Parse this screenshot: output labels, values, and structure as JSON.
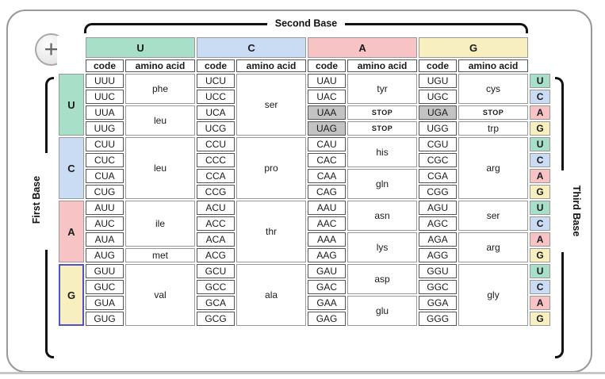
{
  "zoom_button": {
    "label": "+"
  },
  "axes": {
    "top": "Second Base",
    "left": "First Base",
    "right": "Third Base"
  },
  "column_headers": {
    "code": "code",
    "amino_acid": "amino acid"
  },
  "second_bases": [
    "U",
    "C",
    "A",
    "G"
  ],
  "third_bases": [
    "U",
    "C",
    "A",
    "G"
  ],
  "base_colors": {
    "U": "#a7dfc9",
    "C": "#cadbf4",
    "A": "#f8c3c5",
    "G": "#f7efc0"
  },
  "stop_bg_color": "#c3c3c3",
  "highlight": {
    "first_base": "G",
    "border_color": "#5151cc"
  },
  "stop_codes": [
    "UAA",
    "UAG",
    "UGA"
  ],
  "groups": [
    {
      "first_base": "U",
      "columns": [
        {
          "codes": [
            "UUU",
            "UUC",
            "UUA",
            "UUG"
          ],
          "aminos": [
            {
              "label": "phe",
              "span": 2
            },
            {
              "label": "leu",
              "span": 2
            }
          ]
        },
        {
          "codes": [
            "UCU",
            "UCC",
            "UCA",
            "UCG"
          ],
          "aminos": [
            {
              "label": "ser",
              "span": 4
            }
          ]
        },
        {
          "codes": [
            "UAU",
            "UAC",
            "UAA",
            "UAG"
          ],
          "aminos": [
            {
              "label": "tyr",
              "span": 2
            },
            {
              "label": "STOP",
              "span": 1
            },
            {
              "label": "STOP",
              "span": 1
            }
          ]
        },
        {
          "codes": [
            "UGU",
            "UGC",
            "UGA",
            "UGG"
          ],
          "aminos": [
            {
              "label": "cys",
              "span": 2
            },
            {
              "label": "STOP",
              "span": 1
            },
            {
              "label": "trp",
              "span": 1
            }
          ]
        }
      ]
    },
    {
      "first_base": "C",
      "columns": [
        {
          "codes": [
            "CUU",
            "CUC",
            "CUA",
            "CUG"
          ],
          "aminos": [
            {
              "label": "leu",
              "span": 4
            }
          ]
        },
        {
          "codes": [
            "CCU",
            "CCC",
            "CCA",
            "CCG"
          ],
          "aminos": [
            {
              "label": "pro",
              "span": 4
            }
          ]
        },
        {
          "codes": [
            "CAU",
            "CAC",
            "CAA",
            "CAG"
          ],
          "aminos": [
            {
              "label": "his",
              "span": 2
            },
            {
              "label": "gln",
              "span": 2
            }
          ]
        },
        {
          "codes": [
            "CGU",
            "CGC",
            "CGA",
            "CGG"
          ],
          "aminos": [
            {
              "label": "arg",
              "span": 4
            }
          ]
        }
      ]
    },
    {
      "first_base": "A",
      "columns": [
        {
          "codes": [
            "AUU",
            "AUC",
            "AUA",
            "AUG"
          ],
          "aminos": [
            {
              "label": "ile",
              "span": 3
            },
            {
              "label": "met",
              "span": 1
            }
          ]
        },
        {
          "codes": [
            "ACU",
            "ACC",
            "ACA",
            "ACG"
          ],
          "aminos": [
            {
              "label": "thr",
              "span": 4
            }
          ]
        },
        {
          "codes": [
            "AAU",
            "AAC",
            "AAA",
            "AAG"
          ],
          "aminos": [
            {
              "label": "asn",
              "span": 2
            },
            {
              "label": "lys",
              "span": 2
            }
          ]
        },
        {
          "codes": [
            "AGU",
            "AGC",
            "AGA",
            "AGG"
          ],
          "aminos": [
            {
              "label": "ser",
              "span": 2
            },
            {
              "label": "arg",
              "span": 2
            }
          ]
        }
      ]
    },
    {
      "first_base": "G",
      "columns": [
        {
          "codes": [
            "GUU",
            "GUC",
            "GUA",
            "GUG"
          ],
          "aminos": [
            {
              "label": "val",
              "span": 4
            }
          ]
        },
        {
          "codes": [
            "GCU",
            "GCC",
            "GCA",
            "GCG"
          ],
          "aminos": [
            {
              "label": "ala",
              "span": 4
            }
          ]
        },
        {
          "codes": [
            "GAU",
            "GAC",
            "GAA",
            "GAG"
          ],
          "aminos": [
            {
              "label": "asp",
              "span": 2
            },
            {
              "label": "glu",
              "span": 2
            }
          ]
        },
        {
          "codes": [
            "GGU",
            "GGC",
            "GGA",
            "GGG"
          ],
          "aminos": [
            {
              "label": "gly",
              "span": 4
            }
          ]
        }
      ]
    }
  ]
}
